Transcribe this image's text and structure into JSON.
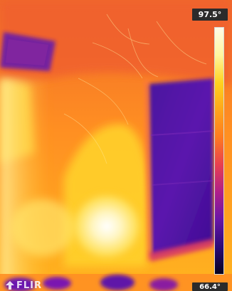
{
  "camera": {
    "brand": "FLIR"
  },
  "scale": {
    "max_temp": "97.5°",
    "min_temp": "66.4°",
    "palette": [
      "#fffbe8",
      "#fff6a0",
      "#ffd21e",
      "#ffa61a",
      "#ff7b1f",
      "#e8404f",
      "#b01f8a",
      "#6a15a8",
      "#2a0b7a",
      "#06021e"
    ]
  },
  "scene_colors": {
    "hot": "#fff7c6",
    "warm": "#ffc72a",
    "mid": "#ff8e22",
    "cool": "#d8306b",
    "cold": "#5b12a8",
    "coldest": "#33108a"
  }
}
